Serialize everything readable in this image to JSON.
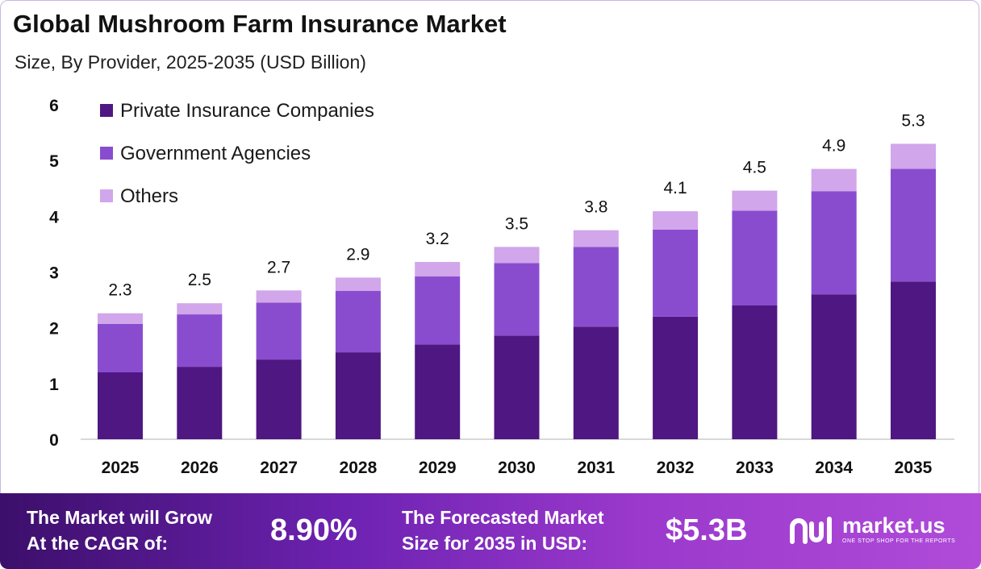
{
  "header": {
    "title": "Global Mushroom Farm Insurance Market",
    "subtitle": "Size, By Provider, 2025-2035 (USD Billion)"
  },
  "colors": {
    "private": "#4f1782",
    "government": "#8a4ccf",
    "others": "#d1a6ea",
    "axis": "#cccccc"
  },
  "chart_data": {
    "type": "bar",
    "stacked": true,
    "categories": [
      "2025",
      "2026",
      "2027",
      "2028",
      "2029",
      "2030",
      "2031",
      "2032",
      "2033",
      "2034",
      "2035"
    ],
    "series": [
      {
        "name": "Private Insurance Companies",
        "values": [
          1.2,
          1.3,
          1.43,
          1.56,
          1.7,
          1.86,
          2.02,
          2.2,
          2.4,
          2.6,
          2.83
        ]
      },
      {
        "name": "Government Agencies",
        "values": [
          0.87,
          0.94,
          1.02,
          1.1,
          1.22,
          1.3,
          1.43,
          1.56,
          1.7,
          1.85,
          2.02
        ]
      },
      {
        "name": "Others",
        "values": [
          0.19,
          0.2,
          0.22,
          0.24,
          0.26,
          0.29,
          0.3,
          0.33,
          0.36,
          0.4,
          0.45
        ]
      }
    ],
    "totals": [
      "2.3",
      "2.5",
      "2.7",
      "2.9",
      "3.2",
      "3.5",
      "3.8",
      "4.1",
      "4.5",
      "4.9",
      "5.3"
    ],
    "ylim": [
      0,
      6
    ],
    "yticks": [
      "0",
      "1",
      "2",
      "3",
      "4",
      "5",
      "6"
    ],
    "legend_position": "top-left",
    "grid": false
  },
  "footer": {
    "cagr_label_line1": "The Market will Grow",
    "cagr_label_line2": "At the CAGR of:",
    "cagr_value": "8.90%",
    "forecast_label_line1": "The Forecasted Market",
    "forecast_label_line2": "Size for 2035 in USD:",
    "forecast_value": "$5.3B",
    "brand_name": "market.us",
    "brand_tagline": "ONE STOP SHOP FOR THE REPORTS"
  }
}
